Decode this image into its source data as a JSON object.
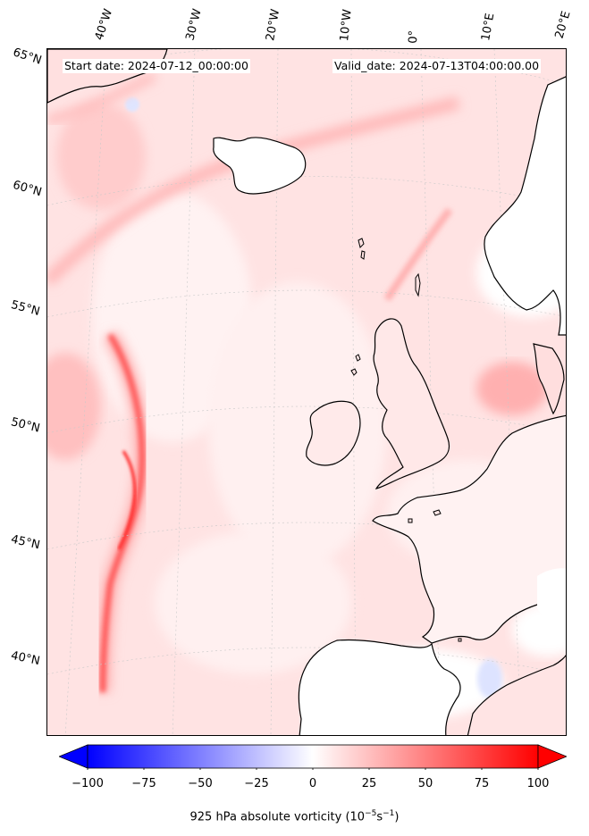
{
  "header": {
    "start_date": "Start date: 2024-07-12_00:00:00",
    "valid_date": "Valid_date: 2024-07-13T04:00:00.00"
  },
  "map": {
    "projection_labels": {
      "longitudes": [
        "40°W",
        "30°W",
        "20°W",
        "10°W",
        "0°",
        "10°E",
        "20°E"
      ],
      "latitudes": [
        "65°N",
        "60°N",
        "55°N",
        "50°N",
        "45°N",
        "40°N"
      ]
    },
    "field": "925 hPa absolute vorticity",
    "colors": {
      "background_shade": "#ffe6e6",
      "max_positive": "#ff0000",
      "max_negative": "#0000ff",
      "coast": "#000000"
    }
  },
  "colorbar": {
    "min": -100,
    "max": 100,
    "ticks": [
      "−100",
      "−75",
      "−50",
      "−25",
      "0",
      "25",
      "50",
      "75",
      "100"
    ],
    "title_prefix": "925 hPa absolute vorticity (10",
    "title_exp1": "−5",
    "title_mid": "s",
    "title_exp2": "−1",
    "title_suffix": ")"
  }
}
